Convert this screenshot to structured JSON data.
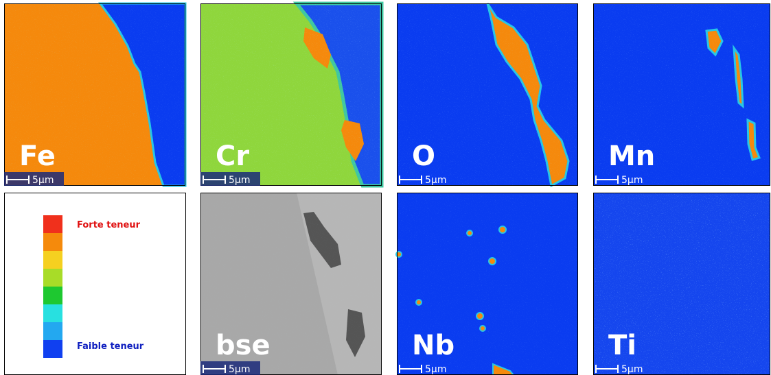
{
  "panels": [
    {
      "label": "Fe",
      "scale": "5µm"
    },
    {
      "label": "Cr",
      "scale": "5µm"
    },
    {
      "label": "O",
      "scale": "5µm"
    },
    {
      "label": "Mn",
      "scale": "5µm"
    },
    {
      "label": "bse",
      "scale": "5µm"
    },
    {
      "label": "Nb",
      "scale": "5µm"
    },
    {
      "label": "Ti",
      "scale": "5µm"
    }
  ],
  "legend": {
    "high": "Forte teneur",
    "low": "Faible teneur"
  }
}
